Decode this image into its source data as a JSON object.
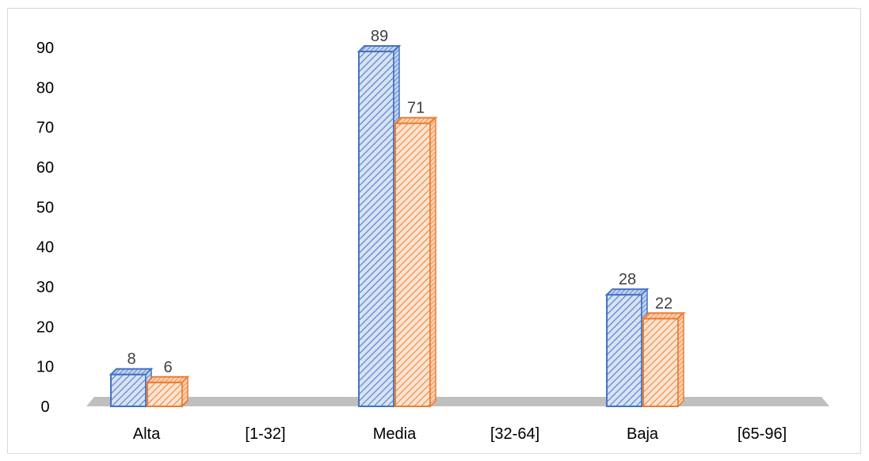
{
  "colors": {
    "series_1": "#4472c4",
    "series_1_fill": "#d6e2f5",
    "series_2": "#ed7d31",
    "series_2_fill": "#fce3d0",
    "floor": "#bfbfbf",
    "frame_border": "#d9d9d9"
  },
  "chart_data": {
    "type": "bar",
    "style": "3d-clustered-column-hatched",
    "categories": [
      "Alta",
      "[1-32]",
      "Media",
      "[32-64]",
      "Baja",
      "[65-96]"
    ],
    "series": [
      {
        "values": [
          8,
          null,
          89,
          null,
          28,
          null
        ],
        "color": "#4472c4"
      },
      {
        "values": [
          6,
          null,
          71,
          null,
          22,
          null
        ],
        "color": "#ed7d31"
      }
    ],
    "y_ticks": [
      0,
      10,
      20,
      30,
      40,
      50,
      60,
      70,
      80,
      90
    ],
    "ylim": [
      0,
      90
    ],
    "grid": false,
    "legend": "none",
    "data_labels": true
  }
}
